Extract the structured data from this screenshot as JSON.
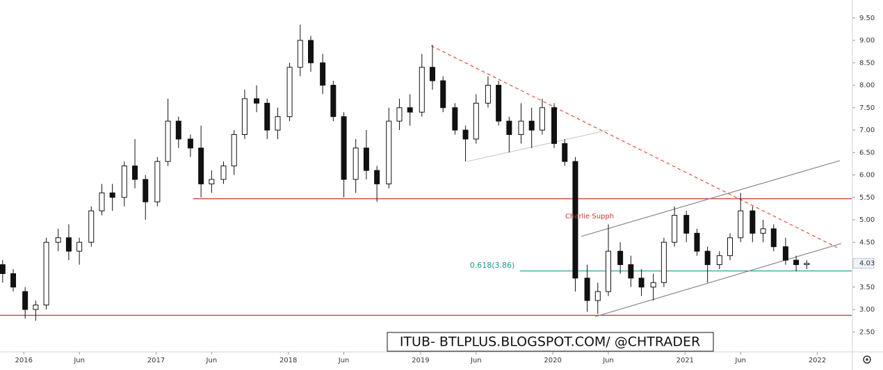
{
  "chart_data": {
    "type": "candlestick",
    "watermark": "ITUB- BTLPLUS.BLOGSPOT.COM/ @CHTRADER",
    "annotation": "Charlie Supph",
    "last_price": 4.03,
    "xlim": [
      2015.82,
      2022.26
    ],
    "ylim": [
      2.07,
      9.9
    ],
    "xticks": [
      2016,
      {
        "value": 2016.42,
        "label": "Jun"
      },
      2017,
      {
        "value": 2017.42,
        "label": "Jun"
      },
      2018,
      {
        "value": 2018.42,
        "label": "Jun"
      },
      2019,
      {
        "value": 2019.42,
        "label": "Jun"
      },
      2020,
      {
        "value": 2020.42,
        "label": "Jun"
      },
      2021,
      {
        "value": 2021.42,
        "label": "Jun"
      },
      2022
    ],
    "yticks": [
      {
        "value": 2.5,
        "label": "2.50"
      },
      {
        "value": 3,
        "label": "3.00"
      },
      {
        "value": 3.5,
        "label": "3.50"
      },
      {
        "value": 4,
        "label": "4.00"
      },
      {
        "value": 4.5,
        "label": "4.50"
      },
      {
        "value": 5,
        "label": "5.00"
      },
      {
        "value": 5.5,
        "label": "5.50"
      },
      {
        "value": 6,
        "label": "6.00"
      },
      {
        "value": 6.5,
        "label": "6.50"
      },
      {
        "value": 7,
        "label": "7.00"
      },
      {
        "value": 7.5,
        "label": "7.50"
      },
      {
        "value": 8,
        "label": "8.00"
      },
      {
        "value": 8.5,
        "label": "8.50"
      },
      {
        "value": 9,
        "label": "9.00"
      },
      {
        "value": 9.5,
        "label": "9.50"
      }
    ],
    "up_color": "#ffffff",
    "down_color": "#111111",
    "x": [
      2015.84,
      2015.92,
      2016.01,
      2016.09,
      2016.17,
      2016.26,
      2016.34,
      2016.42,
      2016.51,
      2016.59,
      2016.67,
      2016.76,
      2016.84,
      2016.92,
      2017.01,
      2017.09,
      2017.17,
      2017.26,
      2017.34,
      2017.42,
      2017.51,
      2017.59,
      2017.67,
      2017.76,
      2017.84,
      2017.92,
      2018.01,
      2018.09,
      2018.17,
      2018.26,
      2018.34,
      2018.42,
      2018.51,
      2018.59,
      2018.67,
      2018.76,
      2018.84,
      2018.92,
      2019.01,
      2019.09,
      2019.17,
      2019.26,
      2019.34,
      2019.42,
      2019.51,
      2019.59,
      2019.67,
      2019.76,
      2019.84,
      2019.92,
      2020.01,
      2020.09,
      2020.17,
      2020.26,
      2020.34,
      2020.42,
      2020.51,
      2020.59,
      2020.67,
      2020.76,
      2020.84,
      2020.92,
      2021.01,
      2021.09,
      2021.17,
      2021.26,
      2021.34,
      2021.42,
      2021.51,
      2021.59,
      2021.67,
      2021.76,
      2021.84,
      2021.92
    ],
    "open": [
      4.0,
      3.8,
      3.4,
      3.0,
      3.1,
      4.5,
      4.6,
      4.3,
      4.5,
      5.2,
      5.6,
      5.5,
      6.2,
      5.9,
      5.4,
      6.3,
      7.2,
      6.8,
      6.6,
      5.8,
      5.9,
      6.2,
      6.9,
      7.7,
      7.6,
      7.0,
      7.3,
      8.4,
      9.0,
      8.5,
      8.0,
      7.3,
      5.9,
      6.6,
      6.1,
      5.8,
      7.2,
      7.5,
      7.4,
      8.4,
      8.1,
      7.5,
      7.0,
      6.8,
      7.6,
      8.0,
      7.2,
      6.9,
      7.2,
      7.0,
      7.5,
      6.7,
      6.3,
      3.7,
      3.2,
      3.4,
      4.3,
      4.0,
      3.7,
      3.5,
      3.6,
      4.5,
      5.1,
      4.7,
      4.3,
      4.0,
      4.2,
      4.6,
      5.2,
      4.7,
      4.8,
      4.4,
      4.1,
      4.0
    ],
    "high": [
      4.1,
      3.9,
      3.5,
      3.2,
      4.6,
      4.8,
      4.9,
      4.6,
      5.3,
      5.8,
      5.8,
      6.3,
      6.8,
      6.0,
      6.4,
      7.7,
      7.3,
      6.9,
      7.1,
      6.1,
      6.3,
      7.0,
      7.9,
      8.0,
      7.7,
      7.5,
      8.5,
      9.35,
      9.1,
      8.7,
      8.1,
      7.4,
      6.8,
      7.0,
      6.2,
      7.5,
      7.7,
      7.8,
      8.7,
      8.9,
      8.2,
      7.6,
      7.1,
      7.8,
      8.2,
      8.1,
      7.3,
      7.6,
      7.5,
      7.7,
      7.6,
      6.8,
      6.4,
      4.0,
      3.6,
      4.9,
      4.5,
      4.2,
      3.9,
      3.8,
      4.6,
      5.3,
      5.2,
      4.8,
      4.4,
      4.3,
      4.7,
      5.6,
      5.3,
      5.0,
      4.9,
      4.6,
      4.2,
      4.1
    ],
    "low": [
      3.6,
      3.4,
      2.8,
      2.75,
      3.0,
      4.3,
      4.1,
      4.0,
      4.4,
      5.1,
      5.2,
      5.3,
      5.7,
      5.0,
      5.3,
      6.2,
      6.6,
      6.4,
      5.5,
      5.6,
      5.8,
      6.0,
      6.8,
      7.4,
      6.8,
      6.8,
      7.2,
      8.2,
      8.3,
      7.8,
      7.2,
      5.5,
      5.6,
      5.9,
      5.4,
      5.7,
      7.0,
      7.1,
      7.3,
      7.9,
      7.4,
      6.9,
      6.3,
      6.7,
      7.5,
      7.1,
      6.5,
      6.7,
      6.6,
      6.9,
      6.6,
      6.2,
      3.4,
      2.95,
      2.9,
      3.3,
      3.8,
      3.5,
      3.3,
      3.2,
      3.5,
      4.4,
      4.5,
      4.2,
      3.6,
      3.9,
      4.1,
      4.5,
      4.5,
      4.5,
      4.3,
      4.0,
      3.85,
      3.9
    ],
    "close": [
      3.8,
      3.5,
      3.0,
      3.1,
      4.5,
      4.6,
      4.3,
      4.5,
      5.2,
      5.6,
      5.5,
      6.2,
      5.9,
      5.4,
      6.3,
      7.2,
      6.8,
      6.6,
      5.8,
      5.9,
      6.2,
      6.9,
      7.7,
      7.6,
      7.0,
      7.3,
      8.4,
      9.0,
      8.5,
      8.0,
      7.3,
      5.9,
      6.6,
      6.1,
      5.8,
      7.2,
      7.5,
      7.4,
      8.4,
      8.1,
      7.5,
      7.0,
      6.8,
      7.6,
      8.0,
      7.2,
      6.9,
      7.2,
      7.0,
      7.5,
      6.7,
      6.3,
      3.7,
      3.2,
      3.4,
      4.3,
      4.0,
      3.7,
      3.5,
      3.6,
      4.5,
      5.1,
      4.7,
      4.3,
      4.0,
      4.2,
      4.6,
      5.2,
      4.7,
      4.8,
      4.4,
      4.1,
      4.0,
      4.03
    ],
    "hlines": [
      {
        "value": 5.47,
        "x_start": 2017.28,
        "color": "#c0392b"
      },
      {
        "value": 2.87,
        "x_start": 2015.82,
        "color": "#c0392b"
      },
      {
        "value": 3.86,
        "x_start": 2019.75,
        "color": "#1a9a8a",
        "label": "0.618(3.86)"
      }
    ],
    "trendlines": [
      {
        "x": [
          2019.08,
          2022.15
        ],
        "y": [
          8.88,
          4.38
        ],
        "color": "#e74c3c",
        "dashed": true
      },
      {
        "x": [
          2020.215,
          2022.17
        ],
        "y": [
          4.63,
          6.32
        ],
        "color": "#888888",
        "dashed": false
      },
      {
        "x": [
          2020.32,
          2022.18
        ],
        "y": [
          2.84,
          4.47
        ],
        "color": "#888888",
        "dashed": false
      },
      {
        "x": [
          2019.35,
          2020.42
        ],
        "y": [
          6.3,
          7.0
        ],
        "color": "#cccccc",
        "dashed": false
      }
    ]
  }
}
